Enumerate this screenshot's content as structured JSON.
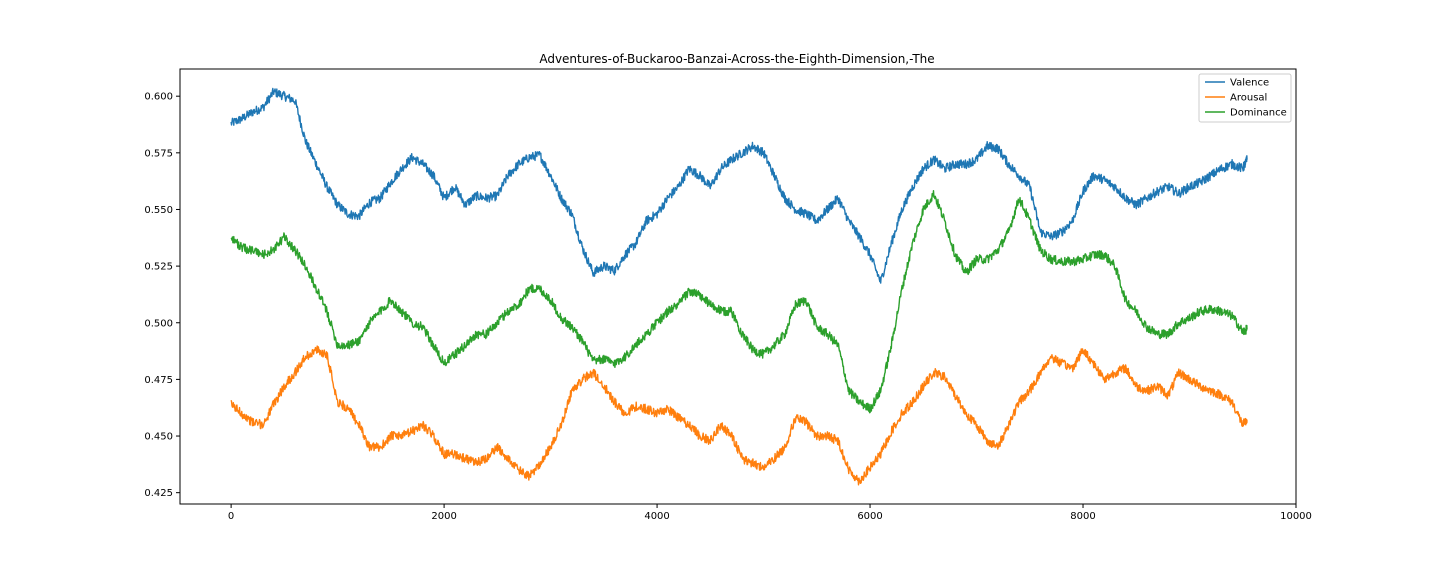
{
  "chart_data": {
    "type": "line",
    "title": "Adventures-of-Buckaroo-Banzai-Across-the-Eighth-Dimension,-The",
    "xlabel": "",
    "ylabel": "",
    "xlim": [
      -480,
      10000
    ],
    "ylim": [
      0.42,
      0.612
    ],
    "x_ticks": [
      0,
      2000,
      4000,
      6000,
      8000,
      10000
    ],
    "x_tick_labels": [
      "0",
      "2000",
      "4000",
      "6000",
      "8000",
      "10000"
    ],
    "y_ticks": [
      0.425,
      0.45,
      0.475,
      0.5,
      0.525,
      0.55,
      0.575,
      0.6
    ],
    "y_tick_labels": [
      "0.425",
      "0.450",
      "0.475",
      "0.500",
      "0.525",
      "0.550",
      "0.575",
      "0.600"
    ],
    "grid": false,
    "legend": "top-right",
    "series": [
      {
        "name": "Valence",
        "color": "#1f77b4",
        "x": [
          0,
          100,
          200,
          300,
          400,
          500,
          600,
          700,
          800,
          900,
          1000,
          1100,
          1200,
          1300,
          1400,
          1500,
          1600,
          1700,
          1800,
          1900,
          2000,
          2100,
          2200,
          2300,
          2400,
          2500,
          2600,
          2700,
          2800,
          2900,
          3000,
          3100,
          3200,
          3300,
          3400,
          3500,
          3600,
          3700,
          3800,
          3900,
          4000,
          4100,
          4200,
          4300,
          4400,
          4500,
          4600,
          4700,
          4800,
          4900,
          5000,
          5100,
          5200,
          5300,
          5400,
          5500,
          5600,
          5700,
          5800,
          5900,
          6000,
          6100,
          6200,
          6300,
          6400,
          6500,
          6600,
          6700,
          6800,
          6900,
          7000,
          7100,
          7200,
          7300,
          7400,
          7500,
          7600,
          7700,
          7800,
          7900,
          8000,
          8100,
          8200,
          8300,
          8400,
          8500,
          8600,
          8700,
          8800,
          8900,
          9000,
          9100,
          9200,
          9300,
          9400,
          9500,
          9540
        ],
        "y": [
          0.588,
          0.59,
          0.593,
          0.595,
          0.602,
          0.6,
          0.598,
          0.58,
          0.57,
          0.56,
          0.552,
          0.548,
          0.547,
          0.553,
          0.555,
          0.562,
          0.568,
          0.573,
          0.57,
          0.565,
          0.555,
          0.56,
          0.552,
          0.556,
          0.555,
          0.556,
          0.565,
          0.57,
          0.573,
          0.574,
          0.565,
          0.555,
          0.548,
          0.533,
          0.522,
          0.525,
          0.523,
          0.53,
          0.535,
          0.545,
          0.548,
          0.555,
          0.56,
          0.568,
          0.565,
          0.56,
          0.568,
          0.572,
          0.575,
          0.578,
          0.575,
          0.565,
          0.555,
          0.55,
          0.548,
          0.545,
          0.55,
          0.555,
          0.545,
          0.538,
          0.53,
          0.518,
          0.535,
          0.55,
          0.56,
          0.568,
          0.572,
          0.568,
          0.57,
          0.57,
          0.572,
          0.578,
          0.577,
          0.57,
          0.565,
          0.56,
          0.54,
          0.538,
          0.54,
          0.545,
          0.558,
          0.565,
          0.563,
          0.56,
          0.555,
          0.552,
          0.555,
          0.558,
          0.56,
          0.557,
          0.56,
          0.562,
          0.565,
          0.568,
          0.57,
          0.568,
          0.572
        ]
      },
      {
        "name": "Arousal",
        "color": "#ff7f0e",
        "x": [
          0,
          100,
          200,
          300,
          400,
          500,
          600,
          700,
          800,
          900,
          1000,
          1100,
          1200,
          1300,
          1400,
          1500,
          1600,
          1700,
          1800,
          1900,
          2000,
          2100,
          2200,
          2300,
          2400,
          2500,
          2600,
          2700,
          2800,
          2900,
          3000,
          3100,
          3200,
          3300,
          3400,
          3500,
          3600,
          3700,
          3800,
          3900,
          4000,
          4100,
          4200,
          4300,
          4400,
          4500,
          4600,
          4700,
          4800,
          4900,
          5000,
          5100,
          5200,
          5300,
          5400,
          5500,
          5600,
          5700,
          5800,
          5900,
          6000,
          6100,
          6200,
          6300,
          6400,
          6500,
          6600,
          6700,
          6800,
          6900,
          7000,
          7100,
          7200,
          7300,
          7400,
          7500,
          7600,
          7700,
          7800,
          7900,
          8000,
          8100,
          8200,
          8300,
          8400,
          8500,
          8600,
          8700,
          8800,
          8900,
          9000,
          9100,
          9200,
          9300,
          9400,
          9500,
          9540
        ],
        "y": [
          0.464,
          0.46,
          0.456,
          0.455,
          0.464,
          0.472,
          0.478,
          0.485,
          0.488,
          0.486,
          0.465,
          0.462,
          0.455,
          0.445,
          0.445,
          0.45,
          0.45,
          0.452,
          0.455,
          0.45,
          0.442,
          0.442,
          0.44,
          0.438,
          0.44,
          0.445,
          0.44,
          0.435,
          0.432,
          0.438,
          0.445,
          0.455,
          0.47,
          0.475,
          0.478,
          0.472,
          0.465,
          0.46,
          0.463,
          0.462,
          0.46,
          0.462,
          0.458,
          0.455,
          0.45,
          0.448,
          0.455,
          0.45,
          0.44,
          0.438,
          0.436,
          0.44,
          0.445,
          0.458,
          0.456,
          0.45,
          0.45,
          0.448,
          0.435,
          0.43,
          0.436,
          0.442,
          0.452,
          0.46,
          0.465,
          0.472,
          0.478,
          0.476,
          0.468,
          0.46,
          0.455,
          0.448,
          0.445,
          0.455,
          0.465,
          0.47,
          0.478,
          0.485,
          0.482,
          0.48,
          0.488,
          0.482,
          0.475,
          0.478,
          0.48,
          0.472,
          0.47,
          0.472,
          0.468,
          0.478,
          0.475,
          0.472,
          0.47,
          0.468,
          0.465,
          0.455,
          0.457
        ]
      },
      {
        "name": "Dominance",
        "color": "#2ca02c",
        "x": [
          0,
          100,
          200,
          300,
          400,
          500,
          600,
          700,
          800,
          900,
          1000,
          1100,
          1200,
          1300,
          1400,
          1500,
          1600,
          1700,
          1800,
          1900,
          2000,
          2100,
          2200,
          2300,
          2400,
          2500,
          2600,
          2700,
          2800,
          2900,
          3000,
          3100,
          3200,
          3300,
          3400,
          3500,
          3600,
          3700,
          3800,
          3900,
          4000,
          4100,
          4200,
          4300,
          4400,
          4500,
          4600,
          4700,
          4800,
          4900,
          5000,
          5100,
          5200,
          5300,
          5400,
          5500,
          5600,
          5700,
          5800,
          5900,
          6000,
          6100,
          6200,
          6300,
          6400,
          6500,
          6600,
          6700,
          6800,
          6900,
          7000,
          7100,
          7200,
          7300,
          7400,
          7500,
          7600,
          7700,
          7800,
          7900,
          8000,
          8100,
          8200,
          8300,
          8400,
          8500,
          8600,
          8700,
          8800,
          8900,
          9000,
          9100,
          9200,
          9300,
          9400,
          9500,
          9540
        ],
        "y": [
          0.538,
          0.533,
          0.532,
          0.53,
          0.532,
          0.538,
          0.532,
          0.525,
          0.515,
          0.505,
          0.49,
          0.49,
          0.492,
          0.5,
          0.505,
          0.51,
          0.505,
          0.5,
          0.498,
          0.49,
          0.482,
          0.486,
          0.49,
          0.495,
          0.495,
          0.5,
          0.505,
          0.508,
          0.515,
          0.515,
          0.51,
          0.502,
          0.498,
          0.492,
          0.483,
          0.484,
          0.482,
          0.485,
          0.49,
          0.495,
          0.5,
          0.505,
          0.508,
          0.514,
          0.512,
          0.508,
          0.505,
          0.505,
          0.495,
          0.488,
          0.486,
          0.49,
          0.495,
          0.508,
          0.51,
          0.498,
          0.495,
          0.49,
          0.47,
          0.465,
          0.462,
          0.47,
          0.49,
          0.515,
          0.535,
          0.55,
          0.557,
          0.545,
          0.53,
          0.522,
          0.528,
          0.528,
          0.532,
          0.54,
          0.555,
          0.545,
          0.532,
          0.528,
          0.527,
          0.527,
          0.528,
          0.53,
          0.53,
          0.525,
          0.51,
          0.505,
          0.498,
          0.495,
          0.495,
          0.5,
          0.502,
          0.505,
          0.506,
          0.505,
          0.503,
          0.496,
          0.497
        ]
      }
    ]
  }
}
